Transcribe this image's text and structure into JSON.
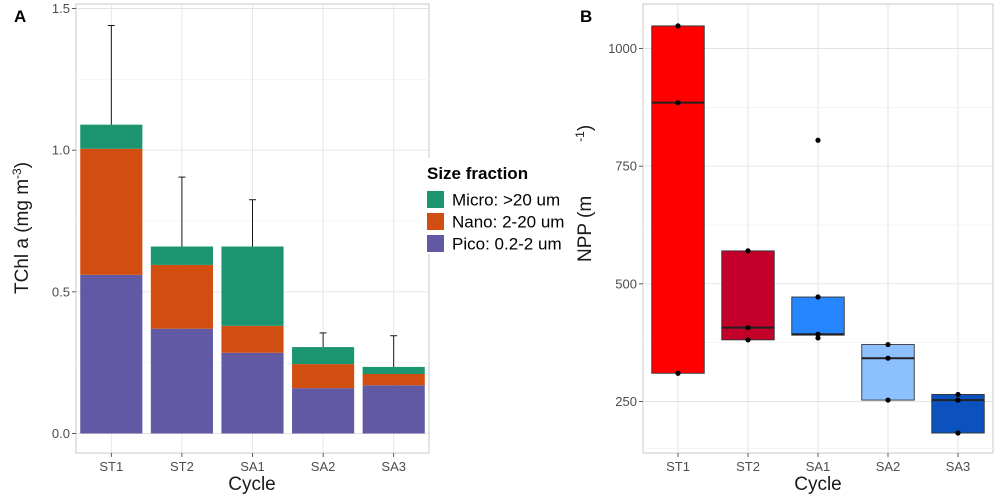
{
  "chart_data": [
    {
      "panel": "A",
      "type": "bar",
      "stacked": true,
      "xlabel": "Cycle",
      "ylabel": "TChl a (mg m",
      "ylabel_sup": "-3",
      "ylabel_close": ")",
      "ylim": [
        0,
        1.5
      ],
      "yticks": [
        0,
        0.5,
        1.0,
        1.5
      ],
      "ytick_labels": [
        "0.0",
        "0.5",
        "1.0",
        "1.5"
      ],
      "categories": [
        "ST1",
        "ST2",
        "SA1",
        "SA2",
        "SA3"
      ],
      "legend_title": "Size fraction",
      "legend_position": "right",
      "grid": true,
      "series": [
        {
          "name": "Pico: 0.2-2 um",
          "color": "#6159A3",
          "values": [
            0.56,
            0.37,
            0.285,
            0.16,
            0.17
          ]
        },
        {
          "name": "Nano: 2-20 um",
          "color": "#D24E10",
          "values": [
            0.445,
            0.225,
            0.095,
            0.085,
            0.04
          ]
        },
        {
          "name": "Micro: >20 um",
          "color": "#1B9470",
          "values": [
            0.085,
            0.065,
            0.28,
            0.06,
            0.025
          ]
        }
      ],
      "error_bar_upper": [
        1.44,
        0.905,
        0.825,
        0.355,
        0.345
      ]
    },
    {
      "panel": "B",
      "type": "boxplot",
      "xlabel": "Cycle",
      "ylabel": "NPP (m",
      "ylabel_sup": "-1",
      "ylabel_close": ")",
      "ylim": [
        150,
        1090
      ],
      "yticks": [
        250,
        500,
        750,
        1000
      ],
      "ytick_labels": [
        "250",
        "500",
        "750",
        "1000"
      ],
      "categories": [
        "ST1",
        "ST2",
        "SA1",
        "SA2",
        "SA3"
      ],
      "grid": true,
      "boxes": [
        {
          "category": "ST1",
          "color": "#FF0000",
          "q1": 310,
          "median": 885,
          "q3": 1048,
          "points": [
            1048,
            885,
            310
          ]
        },
        {
          "category": "ST2",
          "color": "#C2002A",
          "q1": 381,
          "median": 407,
          "q3": 570,
          "points": [
            570,
            407,
            381
          ]
        },
        {
          "category": "SA1",
          "color": "#2686FF",
          "q1": 391,
          "median": 393,
          "q3": 472,
          "points": [
            805,
            472,
            393,
            385
          ]
        },
        {
          "category": "SA2",
          "color": "#8CC0FF",
          "q1": 253,
          "median": 342,
          "q3": 371,
          "points": [
            371,
            342,
            253
          ]
        },
        {
          "category": "SA3",
          "color": "#0C52BF",
          "q1": 183,
          "median": 253,
          "q3": 265,
          "points": [
            265,
            253,
            183
          ]
        }
      ]
    }
  ]
}
